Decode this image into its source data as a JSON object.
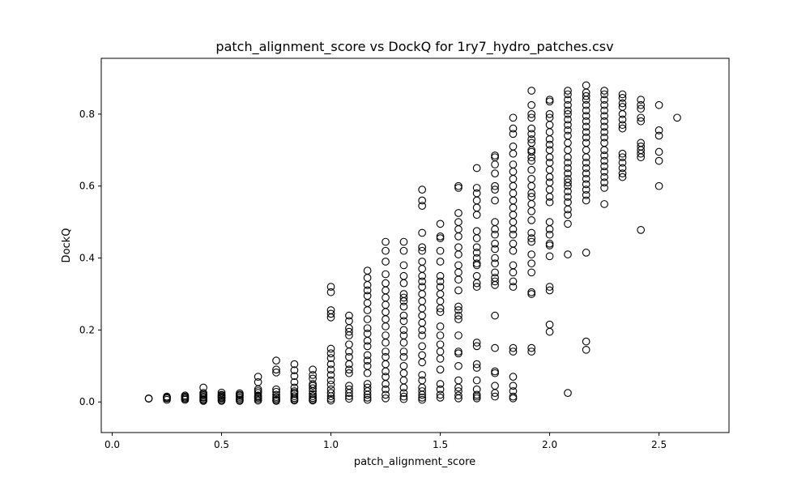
{
  "chart_data": {
    "type": "scatter",
    "title": "patch_alignment_score vs DockQ for 1ry7_hydro_patches.csv",
    "xlabel": "patch_alignment_score",
    "ylabel": "DockQ",
    "xlim": [
      -0.05,
      2.82
    ],
    "ylim": [
      -0.085,
      0.955
    ],
    "xticks": [
      0.0,
      0.5,
      1.0,
      1.5,
      2.0,
      2.5
    ],
    "xtick_labels": [
      "0.0",
      "0.5",
      "1.0",
      "1.5",
      "2.0",
      "2.5"
    ],
    "yticks": [
      0.0,
      0.2,
      0.4,
      0.6,
      0.8
    ],
    "ytick_labels": [
      "0.0",
      "0.2",
      "0.4",
      "0.6",
      "0.8"
    ],
    "grid": false,
    "marker": "open-circle",
    "marker_color": "#000000",
    "columns": [
      {
        "x": 0.167,
        "y": [
          0.01,
          0.009
        ]
      },
      {
        "x": 0.25,
        "y": [
          0.015,
          0.01,
          0.006,
          0.012
        ]
      },
      {
        "x": 0.333,
        "y": [
          0.018,
          0.012,
          0.006,
          0.009,
          0.015
        ]
      },
      {
        "x": 0.417,
        "y": [
          0.04,
          0.025,
          0.018,
          0.012,
          0.008,
          0.005,
          0.003,
          0.021,
          0.014
        ]
      },
      {
        "x": 0.5,
        "y": [
          0.026,
          0.02,
          0.015,
          0.01,
          0.006,
          0.003,
          0.012,
          0.018
        ]
      },
      {
        "x": 0.583,
        "y": [
          0.024,
          0.018,
          0.014,
          0.01,
          0.006,
          0.003,
          0.02
        ]
      },
      {
        "x": 0.667,
        "y": [
          0.07,
          0.055,
          0.035,
          0.025,
          0.018,
          0.012,
          0.008,
          0.004,
          0.03,
          0.015
        ]
      },
      {
        "x": 0.75,
        "y": [
          0.115,
          0.09,
          0.082,
          0.035,
          0.028,
          0.02,
          0.014,
          0.01,
          0.006,
          0.003
        ]
      },
      {
        "x": 0.833,
        "y": [
          0.105,
          0.088,
          0.072,
          0.055,
          0.04,
          0.03,
          0.022,
          0.016,
          0.011,
          0.007,
          0.004,
          0.026
        ]
      },
      {
        "x": 0.917,
        "y": [
          0.09,
          0.075,
          0.065,
          0.05,
          0.038,
          0.03,
          0.022,
          0.016,
          0.011,
          0.007,
          0.004,
          0.045
        ]
      },
      {
        "x": 1.0,
        "y": [
          0.32,
          0.305,
          0.255,
          0.245,
          0.235,
          0.148,
          0.135,
          0.122,
          0.105,
          0.09,
          0.075,
          0.06,
          0.048,
          0.035,
          0.025,
          0.016,
          0.009,
          0.004
        ]
      },
      {
        "x": 1.083,
        "y": [
          0.24,
          0.225,
          0.205,
          0.195,
          0.185,
          0.16,
          0.14,
          0.125,
          0.105,
          0.09,
          0.08,
          0.045,
          0.035,
          0.025,
          0.016,
          0.009
        ]
      },
      {
        "x": 1.167,
        "y": [
          0.365,
          0.345,
          0.325,
          0.31,
          0.295,
          0.275,
          0.255,
          0.23,
          0.205,
          0.19,
          0.17,
          0.155,
          0.13,
          0.115,
          0.1,
          0.08,
          0.05,
          0.04,
          0.03,
          0.02,
          0.012,
          0.006
        ]
      },
      {
        "x": 1.25,
        "y": [
          0.445,
          0.42,
          0.39,
          0.355,
          0.33,
          0.31,
          0.29,
          0.27,
          0.25,
          0.23,
          0.21,
          0.185,
          0.165,
          0.14,
          0.125,
          0.105,
          0.085,
          0.07,
          0.05,
          0.035,
          0.02,
          0.01
        ]
      },
      {
        "x": 1.333,
        "y": [
          0.445,
          0.42,
          0.38,
          0.35,
          0.33,
          0.3,
          0.29,
          0.28,
          0.265,
          0.24,
          0.225,
          0.2,
          0.185,
          0.165,
          0.14,
          0.125,
          0.1,
          0.08,
          0.06,
          0.04,
          0.025,
          0.015,
          0.008
        ]
      },
      {
        "x": 1.417,
        "y": [
          0.59,
          0.56,
          0.545,
          0.47,
          0.43,
          0.42,
          0.39,
          0.37,
          0.35,
          0.335,
          0.32,
          0.3,
          0.28,
          0.26,
          0.24,
          0.22,
          0.2,
          0.185,
          0.155,
          0.13,
          0.11,
          0.075,
          0.06,
          0.04,
          0.03,
          0.02,
          0.012,
          0.006
        ]
      },
      {
        "x": 1.5,
        "y": [
          0.495,
          0.46,
          0.455,
          0.42,
          0.39,
          0.35,
          0.335,
          0.32,
          0.3,
          0.28,
          0.26,
          0.25,
          0.21,
          0.185,
          0.16,
          0.14,
          0.12,
          0.09,
          0.05,
          0.035,
          0.02,
          0.012
        ]
      },
      {
        "x": 1.583,
        "y": [
          0.6,
          0.595,
          0.525,
          0.5,
          0.48,
          0.46,
          0.43,
          0.41,
          0.38,
          0.36,
          0.34,
          0.31,
          0.265,
          0.255,
          0.24,
          0.23,
          0.185,
          0.14,
          0.135,
          0.1,
          0.06,
          0.04,
          0.03,
          0.018,
          0.01
        ]
      },
      {
        "x": 1.667,
        "y": [
          0.65,
          0.595,
          0.58,
          0.56,
          0.54,
          0.52,
          0.475,
          0.455,
          0.43,
          0.415,
          0.4,
          0.385,
          0.38,
          0.35,
          0.33,
          0.32,
          0.165,
          0.155,
          0.105,
          0.095,
          0.06,
          0.035,
          0.02,
          0.015,
          0.01
        ]
      },
      {
        "x": 1.75,
        "y": [
          0.685,
          0.68,
          0.66,
          0.635,
          0.6,
          0.59,
          0.56,
          0.5,
          0.48,
          0.465,
          0.44,
          0.425,
          0.4,
          0.385,
          0.36,
          0.345,
          0.335,
          0.325,
          0.24,
          0.15,
          0.085,
          0.08,
          0.045,
          0.025,
          0.015
        ]
      },
      {
        "x": 1.833,
        "y": [
          0.79,
          0.76,
          0.745,
          0.71,
          0.69,
          0.66,
          0.64,
          0.62,
          0.6,
          0.58,
          0.56,
          0.54,
          0.52,
          0.5,
          0.48,
          0.465,
          0.44,
          0.42,
          0.38,
          0.36,
          0.335,
          0.32,
          0.15,
          0.14,
          0.07,
          0.045,
          0.03,
          0.015,
          0.01
        ]
      },
      {
        "x": 1.917,
        "y": [
          0.865,
          0.825,
          0.8,
          0.79,
          0.76,
          0.745,
          0.73,
          0.72,
          0.7,
          0.695,
          0.68,
          0.67,
          0.645,
          0.62,
          0.6,
          0.58,
          0.57,
          0.55,
          0.53,
          0.505,
          0.47,
          0.455,
          0.445,
          0.41,
          0.385,
          0.36,
          0.305,
          0.3,
          0.15,
          0.14
        ]
      },
      {
        "x": 2.0,
        "y": [
          0.84,
          0.835,
          0.8,
          0.79,
          0.77,
          0.75,
          0.73,
          0.715,
          0.7,
          0.68,
          0.665,
          0.645,
          0.625,
          0.61,
          0.59,
          0.57,
          0.555,
          0.5,
          0.48,
          0.465,
          0.44,
          0.435,
          0.405,
          0.32,
          0.31,
          0.215,
          0.195
        ]
      },
      {
        "x": 2.083,
        "y": [
          0.865,
          0.855,
          0.84,
          0.825,
          0.81,
          0.8,
          0.785,
          0.77,
          0.755,
          0.74,
          0.72,
          0.7,
          0.68,
          0.665,
          0.65,
          0.635,
          0.62,
          0.61,
          0.6,
          0.585,
          0.57,
          0.555,
          0.535,
          0.52,
          0.495,
          0.41,
          0.025
        ]
      },
      {
        "x": 2.167,
        "y": [
          0.88,
          0.86,
          0.85,
          0.84,
          0.825,
          0.81,
          0.795,
          0.78,
          0.765,
          0.75,
          0.735,
          0.72,
          0.7,
          0.68,
          0.665,
          0.65,
          0.635,
          0.62,
          0.605,
          0.59,
          0.575,
          0.56,
          0.415,
          0.168,
          0.145
        ]
      },
      {
        "x": 2.25,
        "y": [
          0.865,
          0.855,
          0.84,
          0.825,
          0.81,
          0.795,
          0.78,
          0.765,
          0.75,
          0.735,
          0.72,
          0.7,
          0.685,
          0.67,
          0.655,
          0.64,
          0.625,
          0.61,
          0.595,
          0.55
        ]
      },
      {
        "x": 2.333,
        "y": [
          0.855,
          0.845,
          0.83,
          0.82,
          0.8,
          0.785,
          0.77,
          0.76,
          0.69,
          0.68,
          0.665,
          0.65,
          0.635,
          0.625
        ]
      },
      {
        "x": 2.417,
        "y": [
          0.84,
          0.825,
          0.815,
          0.79,
          0.78,
          0.72,
          0.71,
          0.7,
          0.69,
          0.68,
          0.478
        ]
      },
      {
        "x": 2.5,
        "y": [
          0.825,
          0.755,
          0.74,
          0.695,
          0.67,
          0.6
        ]
      },
      {
        "x": 2.583,
        "y": [
          0.79
        ]
      }
    ]
  }
}
